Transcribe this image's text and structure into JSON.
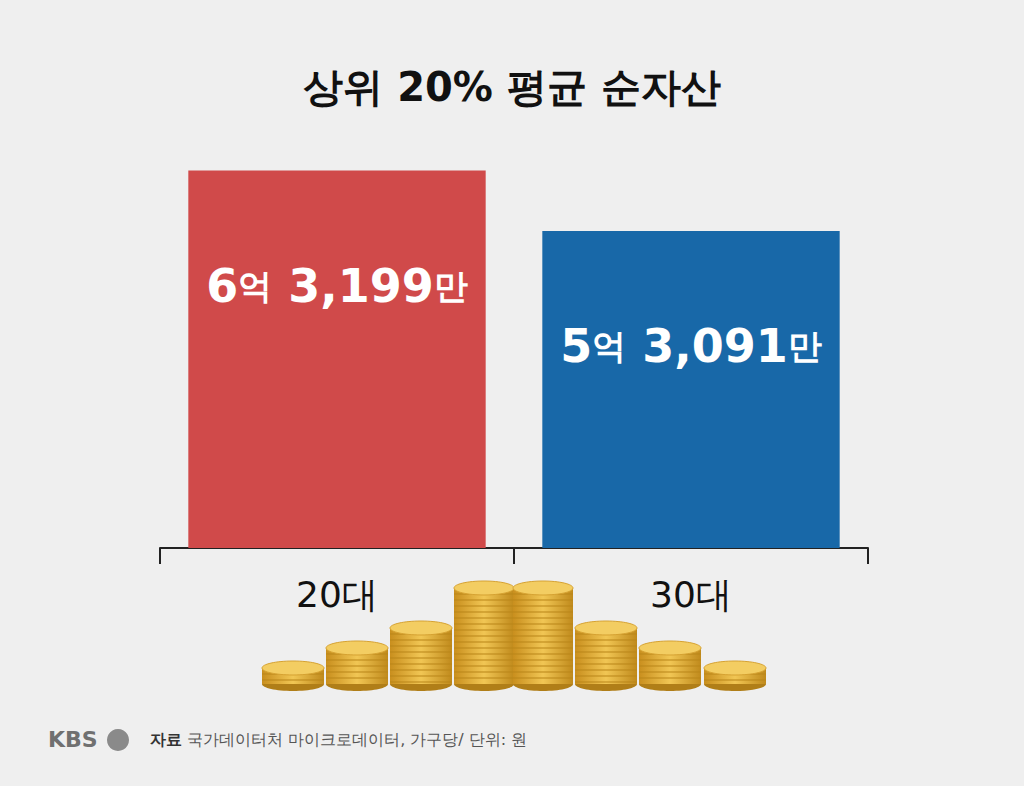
{
  "chart_data": {
    "type": "bar",
    "title": "상위 20% 평균 순자산",
    "categories": [
      "20대",
      "30대"
    ],
    "values": [
      631990000,
      530910000
    ],
    "value_labels": [
      "6억 3,199만",
      "5억 3,091만"
    ],
    "colors": [
      "#d04a4a",
      "#1868a8"
    ],
    "ylim": [
      0,
      700000000
    ],
    "yticks": [
      0,
      700000000
    ],
    "grid": false,
    "data_labels": true,
    "tick_labels": "x",
    "logo": "KBS",
    "source": "자료 국가데이터처 마이크로데이터, 가구당/ 단위: 원"
  }
}
